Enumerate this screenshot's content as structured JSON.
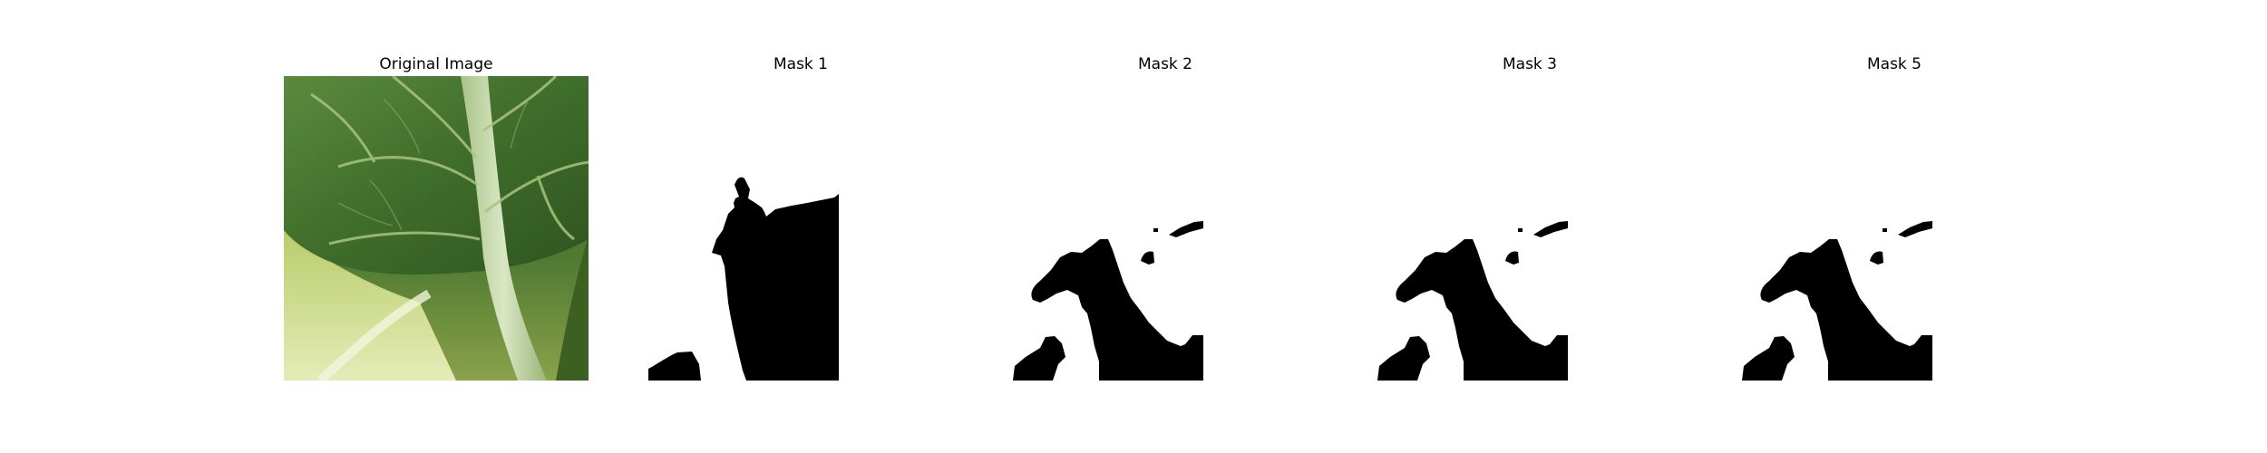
{
  "figure": {
    "panels": [
      {
        "title": "Original Image",
        "kind": "photo",
        "subject": "leaf"
      },
      {
        "title": "Mask 1",
        "kind": "mask"
      },
      {
        "title": "Mask 2",
        "kind": "mask"
      },
      {
        "title": "Mask 3",
        "kind": "mask"
      },
      {
        "title": "Mask 5",
        "kind": "mask"
      }
    ]
  }
}
